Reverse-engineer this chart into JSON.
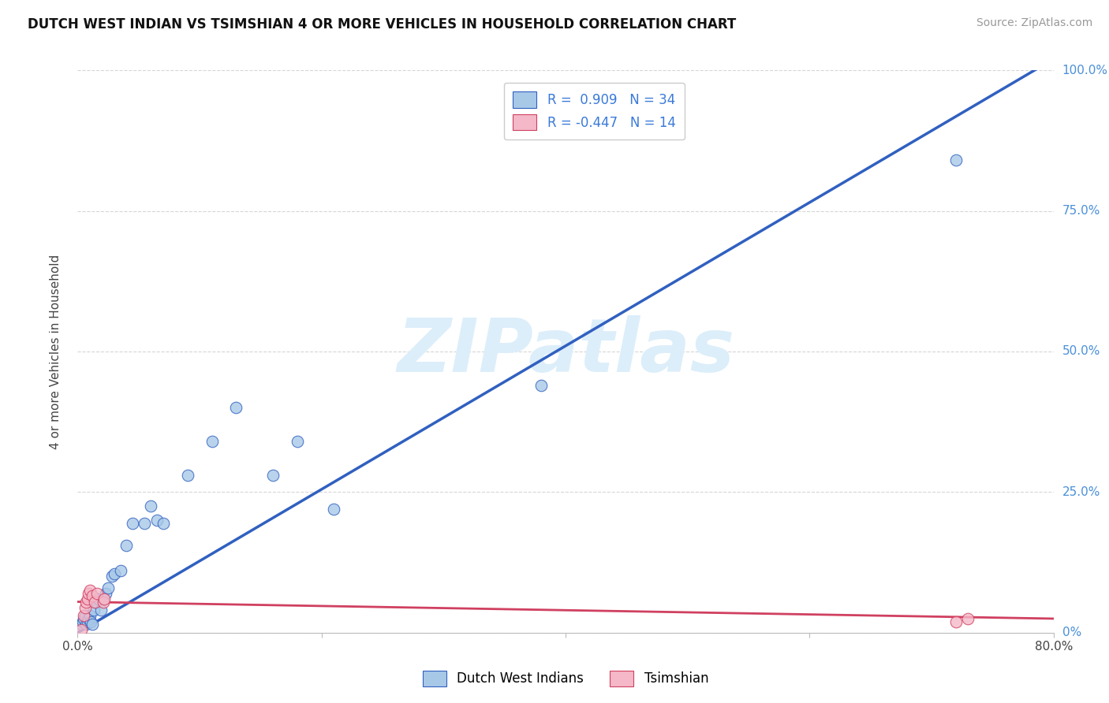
{
  "title": "DUTCH WEST INDIAN VS TSIMSHIAN 4 OR MORE VEHICLES IN HOUSEHOLD CORRELATION CHART",
  "source": "Source: ZipAtlas.com",
  "xlabel": "",
  "ylabel": "4 or more Vehicles in Household",
  "xmin": 0.0,
  "xmax": 0.8,
  "ymin": 0.0,
  "ymax": 1.0,
  "yticks": [
    0.0,
    0.25,
    0.5,
    0.75,
    1.0
  ],
  "ytick_labels": [
    "0%",
    "25.0%",
    "50.0%",
    "75.0%",
    "100.0%"
  ],
  "xticks": [
    0.0,
    0.2,
    0.4,
    0.6,
    0.8
  ],
  "xtick_labels": [
    "0.0%",
    "",
    "",
    "",
    "80.0%"
  ],
  "legend_label1": "Dutch West Indians",
  "legend_label2": "Tsimshian",
  "R1": 0.909,
  "N1": 34,
  "R2": -0.447,
  "N2": 14,
  "color1": "#a8c8e8",
  "color2": "#f4b8c8",
  "line_color1": "#3060c0",
  "line_color2": "#d04060",
  "watermark": "ZIPatlas",
  "watermark_color": "#dceefa",
  "blue_line_x0": 0.0,
  "blue_line_y0": 0.0,
  "blue_line_x1": 0.8,
  "blue_line_y1": 1.02,
  "pink_line_x0": 0.0,
  "pink_line_y0": 0.055,
  "pink_line_x1": 0.8,
  "pink_line_y1": 0.025,
  "blue_x": [
    0.003,
    0.004,
    0.005,
    0.006,
    0.007,
    0.008,
    0.009,
    0.01,
    0.011,
    0.012,
    0.013,
    0.015,
    0.017,
    0.019,
    0.021,
    0.023,
    0.025,
    0.028,
    0.03,
    0.035,
    0.04,
    0.045,
    0.055,
    0.06,
    0.065,
    0.07,
    0.09,
    0.11,
    0.13,
    0.16,
    0.18,
    0.21,
    0.38,
    0.72
  ],
  "blue_y": [
    0.015,
    0.02,
    0.025,
    0.03,
    0.015,
    0.02,
    0.025,
    0.03,
    0.02,
    0.015,
    0.04,
    0.055,
    0.06,
    0.04,
    0.06,
    0.07,
    0.08,
    0.1,
    0.105,
    0.11,
    0.155,
    0.195,
    0.195,
    0.225,
    0.2,
    0.195,
    0.28,
    0.34,
    0.4,
    0.28,
    0.34,
    0.22,
    0.44,
    0.84
  ],
  "pink_x": [
    0.003,
    0.005,
    0.006,
    0.007,
    0.008,
    0.009,
    0.01,
    0.012,
    0.014,
    0.016,
    0.021,
    0.022,
    0.72,
    0.73
  ],
  "pink_y": [
    0.005,
    0.03,
    0.045,
    0.055,
    0.06,
    0.07,
    0.075,
    0.065,
    0.055,
    0.07,
    0.055,
    0.06,
    0.02,
    0.025
  ]
}
